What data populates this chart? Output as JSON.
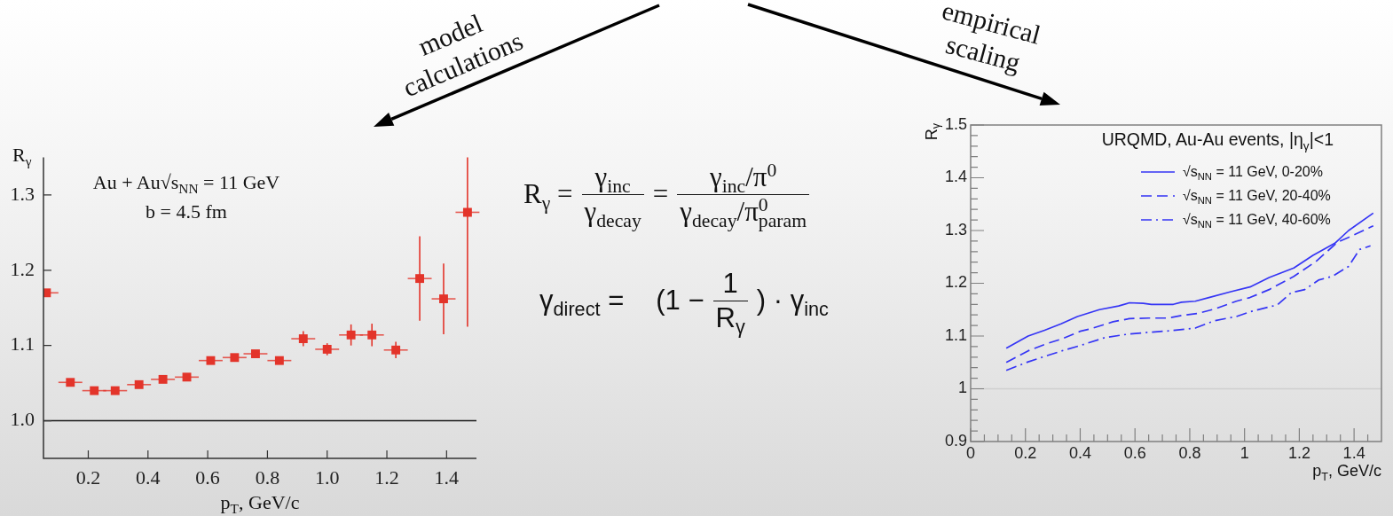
{
  "chart_data": [
    {
      "type": "scatter",
      "xlabel": "p$_{T}$, GeV/c",
      "ylabel": "R$_{γ}$",
      "annotations": [
        "Au + Au√s$_{NN}$ = 11 GeV",
        "b = 4.5 fm"
      ],
      "x": [
        0.06,
        0.14,
        0.22,
        0.29,
        0.37,
        0.45,
        0.53,
        0.61,
        0.69,
        0.76,
        0.84,
        0.92,
        1.0,
        1.08,
        1.15,
        1.23,
        1.31,
        1.39,
        1.47
      ],
      "values": [
        1.17,
        1.051,
        1.04,
        1.04,
        1.048,
        1.055,
        1.058,
        1.08,
        1.084,
        1.089,
        1.08,
        1.109,
        1.095,
        1.114,
        1.114,
        1.094,
        1.189,
        1.162,
        1.277
      ],
      "errors": [
        null,
        null,
        null,
        null,
        null,
        null,
        null,
        null,
        null,
        null,
        null,
        0.01,
        0.008,
        0.014,
        0.015,
        0.011,
        0.056,
        0.047,
        [
          1.125,
          1.35
        ]
      ],
      "xerrors": [
        [
          0.05,
          0.1
        ],
        0.04,
        0.04,
        0.04,
        0.04,
        0.04,
        0.04,
        0.04,
        0.04,
        0.04,
        0.04,
        0.04,
        0.04,
        0.04,
        0.04,
        0.04,
        0.04,
        0.04,
        0.04
      ],
      "color": "#e3342a",
      "marker": "square",
      "xlim": [
        0.05,
        1.5
      ],
      "ylim": [
        0.95,
        1.35
      ],
      "xticks": [
        0.2,
        0.4,
        0.6,
        0.8,
        {
          "value": 1,
          "label": "1.0"
        },
        1.2,
        1.4
      ],
      "yticks": [
        {
          "value": 1,
          "label": "1.0"
        },
        1.1,
        1.2,
        1.3
      ],
      "ref_lines": [
        {
          "axis": "y",
          "value": 1,
          "color": "#1a1a1a"
        }
      ]
    },
    {
      "type": "other",
      "annotations": [
        "model calculations",
        "empirical scaling",
        "R$_{γ}$ =",
        "γ$_{inc}$",
        "γ$_{decay}$",
        "=",
        "γ$_{inc}$/π$^{0}$",
        "γ$_{decay}$/π$^{0}$$_{param}$",
        "γ$_{direct}$ =",
        "(1 −",
        "1",
        "R$_{γ}$",
        ") · γ$_{inc}$"
      ]
    },
    {
      "type": "line",
      "xlabel": "p$_{T}$, GeV/c",
      "ylabel": "R$_{γ}$",
      "legend_title": "URQMD, Au-Au events, |η$_{γ}$|<1",
      "legend": "top right",
      "marker": "none",
      "xlim": [
        0,
        1.5
      ],
      "ylim": [
        0.9,
        1.5
      ],
      "xticks": [
        0,
        {
          "value": 0.05,
          "label": null
        },
        {
          "value": 0.1,
          "label": null
        },
        {
          "value": 0.15,
          "label": null
        },
        0.2,
        {
          "value": 0.25,
          "label": null
        },
        {
          "value": 0.3,
          "label": null
        },
        {
          "value": 0.35,
          "label": null
        },
        0.4,
        {
          "value": 0.45,
          "label": null
        },
        {
          "value": 0.5,
          "label": null
        },
        {
          "value": 0.55,
          "label": null
        },
        0.6,
        {
          "value": 0.65,
          "label": null
        },
        {
          "value": 0.7,
          "label": null
        },
        {
          "value": 0.75,
          "label": null
        },
        0.8,
        {
          "value": 0.85,
          "label": null
        },
        {
          "value": 0.9,
          "label": null
        },
        {
          "value": 0.95,
          "label": null
        },
        1,
        {
          "value": 1.05,
          "label": null
        },
        {
          "value": 1.1,
          "label": null
        },
        {
          "value": 1.15,
          "label": null
        },
        1.2,
        {
          "value": 1.25,
          "label": null
        },
        {
          "value": 1.3,
          "label": null
        },
        {
          "value": 1.35,
          "label": null
        },
        1.4,
        {
          "value": 1.45,
          "label": null
        }
      ],
      "yticks": [
        0.9,
        {
          "value": 0.92,
          "label": null
        },
        {
          "value": 0.94,
          "label": null
        },
        {
          "value": 0.96,
          "label": null
        },
        {
          "value": 0.98,
          "label": null
        },
        1,
        {
          "value": 1.02,
          "label": null
        },
        {
          "value": 1.04,
          "label": null
        },
        {
          "value": 1.06,
          "label": null
        },
        {
          "value": 1.08,
          "label": null
        },
        1.1,
        {
          "value": 1.12,
          "label": null
        },
        {
          "value": 1.14,
          "label": null
        },
        {
          "value": 1.16,
          "label": null
        },
        {
          "value": 1.18,
          "label": null
        },
        1.2,
        {
          "value": 1.22,
          "label": null
        },
        {
          "value": 1.24,
          "label": null
        },
        {
          "value": 1.26,
          "label": null
        },
        {
          "value": 1.28,
          "label": null
        },
        1.3,
        {
          "value": 1.32,
          "label": null
        },
        {
          "value": 1.34,
          "label": null
        },
        {
          "value": 1.36,
          "label": null
        },
        {
          "value": 1.38,
          "label": null
        },
        1.4,
        {
          "value": 1.42,
          "label": null
        },
        {
          "value": 1.44,
          "label": null
        },
        {
          "value": 1.46,
          "label": null
        },
        {
          "value": 1.48,
          "label": null
        },
        1.5
      ],
      "ref_lines": [
        {
          "axis": "y",
          "value": 1,
          "color": "#cfcfcf"
        }
      ],
      "series": [
        {
          "name": "√s$_{NN}$ = 11 GeV, 0-20%",
          "color": "#3535f5",
          "line_style": "solid",
          "x": [
            0.13,
            0.21,
            0.27,
            0.33,
            0.39,
            0.47,
            0.54,
            0.58,
            0.63,
            0.66,
            0.74,
            0.77,
            0.82,
            0.87,
            0.95,
            1.02,
            1.09,
            1.18,
            1.25,
            1.33,
            1.38,
            1.47
          ],
          "values": [
            1.077,
            1.1,
            1.111,
            1.123,
            1.137,
            1.15,
            1.157,
            1.163,
            1.162,
            1.16,
            1.16,
            1.164,
            1.166,
            1.173,
            1.184,
            1.193,
            1.211,
            1.229,
            1.253,
            1.276,
            1.3,
            1.333
          ]
        },
        {
          "name": "√s$_{NN}$ = 11 GeV, 20-40%",
          "color": "#3535f5",
          "line_style": "dashed",
          "x": [
            0.13,
            0.21,
            0.28,
            0.33,
            0.4,
            0.44,
            0.52,
            0.58,
            0.65,
            0.72,
            0.77,
            0.83,
            0.89,
            0.97,
            1.02,
            1.09,
            1.18,
            1.26,
            1.34,
            1.38,
            1.47
          ],
          "values": [
            1.05,
            1.072,
            1.086,
            1.094,
            1.109,
            1.114,
            1.127,
            1.133,
            1.134,
            1.134,
            1.139,
            1.143,
            1.151,
            1.166,
            1.173,
            1.188,
            1.213,
            1.241,
            1.278,
            1.287,
            1.309
          ]
        },
        {
          "name": "√s$_{NN}$ = 11 GeV, 40-60%",
          "color": "#3535f5",
          "line_style": "dashdot",
          "x": [
            0.13,
            0.21,
            0.28,
            0.34,
            0.4,
            0.49,
            0.58,
            0.65,
            0.73,
            0.82,
            0.89,
            0.97,
            1.02,
            1.12,
            1.17,
            1.22,
            1.27,
            1.32,
            1.38,
            1.42,
            1.46
          ],
          "values": [
            1.035,
            1.051,
            1.063,
            1.073,
            1.082,
            1.097,
            1.104,
            1.107,
            1.11,
            1.115,
            1.129,
            1.137,
            1.146,
            1.159,
            1.182,
            1.188,
            1.206,
            1.213,
            1.232,
            1.264,
            1.271
          ]
        }
      ]
    }
  ]
}
